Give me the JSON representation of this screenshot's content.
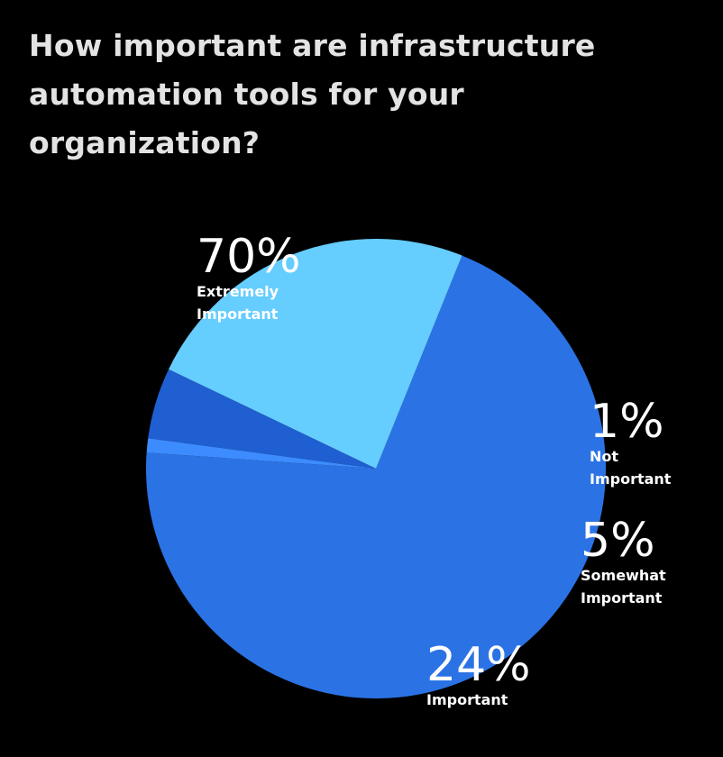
{
  "chart_data": {
    "type": "pie",
    "title": "How important are infrastructure automation tools for your organization?",
    "slices": [
      {
        "key": "extremely-important",
        "label": "Extremely Important",
        "label_lines": [
          "Extremely",
          "Important"
        ],
        "value": 70,
        "value_label": "70%",
        "color": "#2b73e5"
      },
      {
        "key": "important",
        "label": "Important",
        "label_lines": [
          "Important"
        ],
        "value": 24,
        "value_label": "24%",
        "color": "#66cdff"
      },
      {
        "key": "somewhat-important",
        "label": "Somewhat Important",
        "label_lines": [
          "Somewhat",
          "Important"
        ],
        "value": 5,
        "value_label": "5%",
        "color": "#1f5fd1"
      },
      {
        "key": "not-important",
        "label": "Not Important",
        "label_lines": [
          "Not",
          "Important"
        ],
        "value": 1,
        "value_label": "1%",
        "color": "#3d8cff"
      }
    ],
    "legend": "none",
    "label_style": "inline-annotations"
  }
}
